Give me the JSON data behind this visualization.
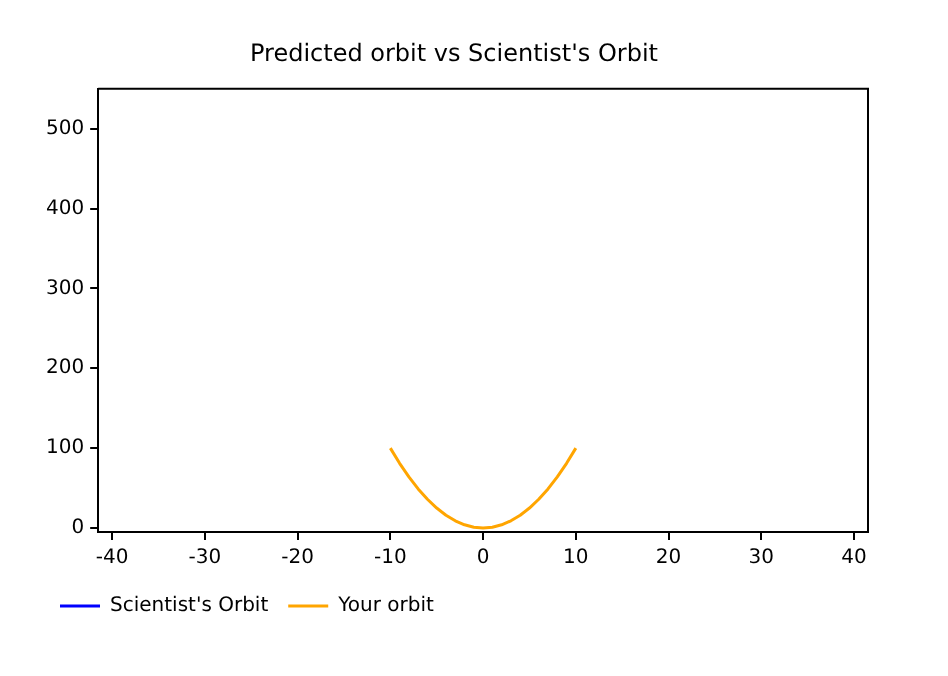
{
  "chart_data": {
    "type": "line",
    "title": "Predicted orbit vs Scientist's Orbit",
    "x": [
      -10,
      -9,
      -8,
      -7,
      -6,
      -5,
      -4,
      -3,
      -2,
      -1,
      0,
      1,
      2,
      3,
      4,
      5,
      6,
      7,
      8,
      9,
      10
    ],
    "series": [
      {
        "name": "Scientist's Orbit",
        "color": "#0000ff",
        "values": [
          null,
          null,
          null,
          null,
          null,
          null,
          null,
          null,
          null,
          null,
          null,
          null,
          null,
          null,
          null,
          null,
          null,
          null,
          null,
          null,
          null
        ]
      },
      {
        "name": "Your orbit",
        "color": "#ffa500",
        "values": [
          100,
          81,
          64,
          49,
          36,
          25,
          16,
          9,
          4,
          1,
          0,
          1,
          4,
          9,
          16,
          25,
          36,
          49,
          64,
          81,
          100
        ]
      }
    ],
    "xlim": [
      -41.5,
      41.5
    ],
    "xticks": [
      -40,
      -30,
      -20,
      -10,
      0,
      10,
      20,
      30,
      40
    ],
    "ylim": [
      -5,
      550
    ],
    "yticks": [
      0,
      100,
      200,
      300,
      400,
      500
    ],
    "grid": false,
    "legend": "bottom left",
    "marker": "none",
    "line_style": "solid"
  }
}
